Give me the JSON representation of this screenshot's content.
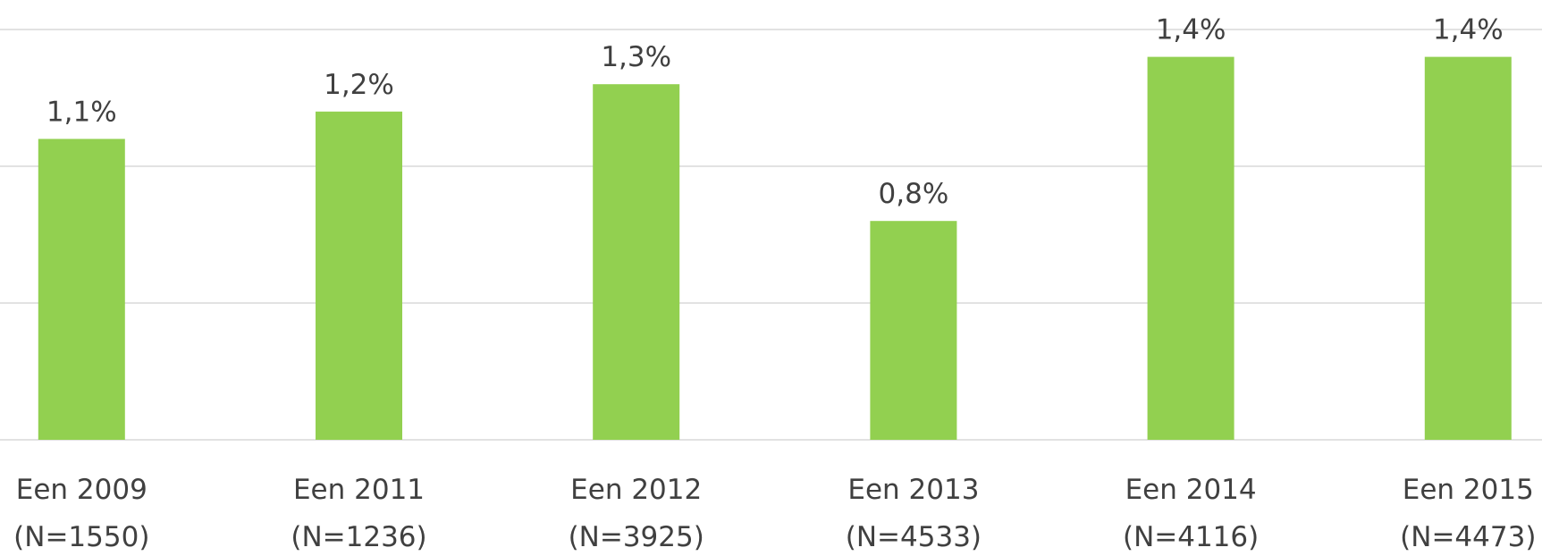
{
  "chart_data": {
    "type": "bar",
    "categories": [
      [
        "Een 2009",
        "(N=1550)"
      ],
      [
        "Een 2011",
        "(N=1236)"
      ],
      [
        "Een 2012",
        "(N=3925)"
      ],
      [
        "Een 2013",
        "(N=4533)"
      ],
      [
        "Een 2014",
        "(N=4116)"
      ],
      [
        "Een 2015",
        "(N=4473)"
      ]
    ],
    "values": [
      1.1,
      1.2,
      1.3,
      0.8,
      1.4,
      1.4
    ],
    "value_labels": [
      "1,1%",
      "1,2%",
      "1,3%",
      "0,8%",
      "1,4%",
      "1,4%"
    ],
    "color": "#92d050",
    "ylim": [
      0,
      1.5
    ],
    "yticks": [
      0,
      0.5,
      1,
      1.5
    ],
    "grid": true
  }
}
